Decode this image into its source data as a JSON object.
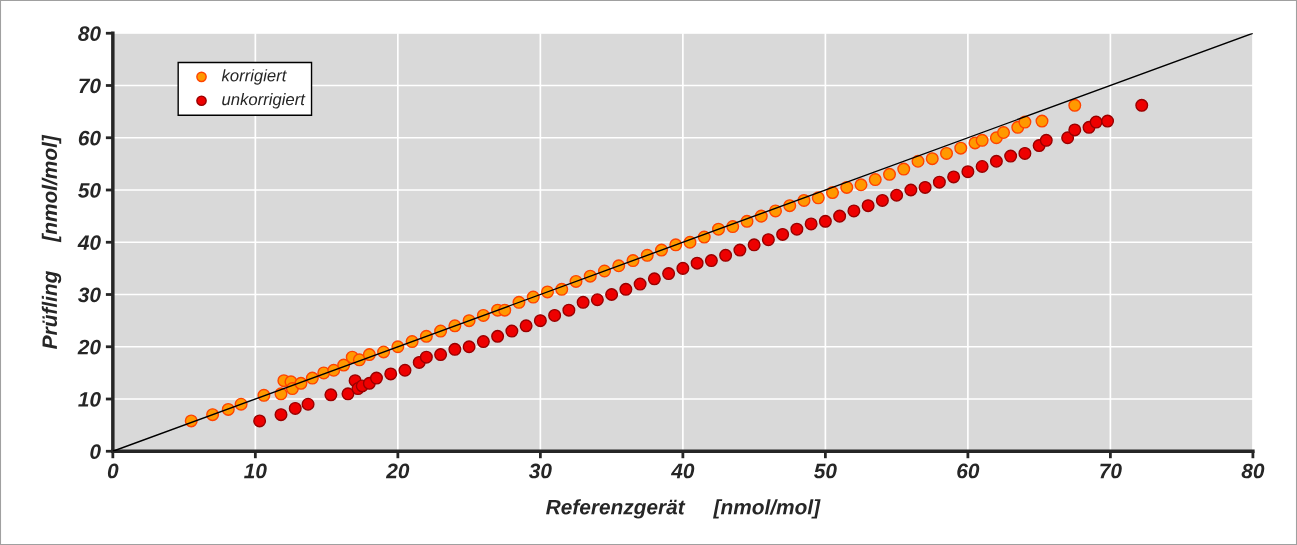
{
  "chart_data": {
    "type": "scatter",
    "xlabel": "Referenzgerät     [nmol/mol]",
    "ylabel": "Prüfling     [nmol/mol]",
    "xlim": [
      0,
      80
    ],
    "ylim": [
      0,
      80
    ],
    "xticks": [
      0,
      10,
      20,
      30,
      40,
      50,
      60,
      70,
      80
    ],
    "yticks": [
      0,
      10,
      20,
      30,
      40,
      50,
      60,
      70,
      80
    ],
    "grid": true,
    "legend": "top left",
    "marker": "circle",
    "series": [
      {
        "type": "line",
        "marker": "none",
        "color": "#000000",
        "x": [
          0,
          80
        ],
        "values": [
          0,
          80
        ]
      },
      {
        "name": "korrigiert",
        "color": "#ff9900",
        "x": [
          5.5,
          7,
          8.1,
          9,
          10.6,
          11.8,
          12,
          12.5,
          12.6,
          13.2,
          14,
          14.8,
          15.5,
          16.2,
          16.8,
          17.3,
          18,
          19,
          20,
          21,
          22,
          23,
          24,
          25,
          26,
          27,
          27.5,
          28.5,
          29.5,
          30.5,
          31.5,
          32.5,
          33.5,
          34.5,
          35.5,
          36.5,
          37.5,
          38.5,
          39.5,
          40.5,
          41.5,
          42.5,
          43.5,
          44.5,
          45.5,
          46.5,
          47.5,
          48.5,
          49.5,
          50.5,
          51.5,
          52.5,
          53.5,
          54.5,
          55.5,
          56.5,
          57.5,
          58.5,
          59.5,
          60.5,
          61,
          62,
          62.5,
          63.5,
          64,
          65.2,
          67.5
        ],
        "values": [
          5.8,
          7,
          8,
          9,
          10.7,
          11,
          13.5,
          13.3,
          12,
          13,
          14,
          15,
          15.5,
          16.5,
          18,
          17.5,
          18.5,
          19,
          20,
          21,
          22,
          23,
          24,
          25,
          26,
          27,
          27,
          28.5,
          29.5,
          30.5,
          31,
          32.5,
          33.5,
          34.5,
          35.5,
          36.5,
          37.5,
          38.5,
          39.5,
          40,
          41,
          42.5,
          43,
          44,
          45,
          46,
          47,
          48,
          48.5,
          49.5,
          50.5,
          51,
          52,
          53,
          54,
          55.5,
          56,
          57,
          58,
          59,
          59.5,
          60,
          61,
          62,
          63,
          63.2,
          66.2
        ]
      },
      {
        "name": "unkorrigiert",
        "color": "#ee0000",
        "x": [
          10.3,
          11.8,
          12.8,
          13.7,
          15.3,
          16.5,
          17,
          17.2,
          17.5,
          18,
          18.5,
          19.5,
          20.5,
          21.5,
          22,
          23,
          24,
          25,
          26,
          27,
          28,
          29,
          30,
          31,
          32,
          33,
          34,
          35,
          36,
          37,
          38,
          39,
          40,
          41,
          42,
          43,
          44,
          45,
          46,
          47,
          48,
          49,
          50,
          51,
          52,
          53,
          54,
          55,
          56,
          57,
          58,
          59,
          60,
          61,
          62,
          63,
          64,
          65,
          65.5,
          67,
          67.5,
          68.5,
          69,
          69.8,
          72.2
        ],
        "values": [
          5.8,
          7,
          8.2,
          9,
          10.8,
          11,
          13.5,
          12,
          12.5,
          13,
          14,
          14.8,
          15.5,
          17,
          18,
          18.5,
          19.5,
          20,
          21,
          22,
          23,
          24,
          25,
          26,
          27,
          28.5,
          29,
          30,
          31,
          32,
          33,
          34,
          35,
          36,
          36.5,
          37.5,
          38.5,
          39.5,
          40.5,
          41.5,
          42.5,
          43.5,
          44,
          45,
          46,
          47,
          48,
          49,
          50,
          50.5,
          51.5,
          52.5,
          53.5,
          54.5,
          55.5,
          56.5,
          57,
          58.5,
          59.5,
          60,
          61.5,
          62,
          63,
          63.2,
          66.2
        ]
      }
    ]
  }
}
